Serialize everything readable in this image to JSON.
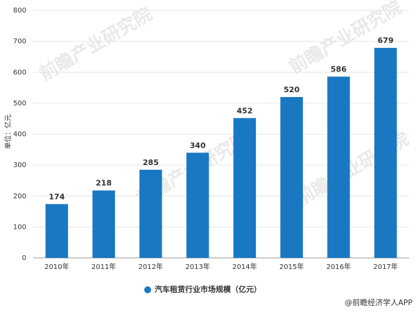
{
  "chart_data": {
    "type": "bar",
    "y_axis_label": "单位：亿元",
    "categories": [
      "2010年",
      "2011年",
      "2012年",
      "2013年",
      "2014年",
      "2015年",
      "2016年",
      "2017年"
    ],
    "series": [
      {
        "name": "汽车租赁行业市场规模（亿元）",
        "color": "#1a78c2",
        "values": [
          174,
          218,
          285,
          340,
          452,
          520,
          586,
          679
        ]
      }
    ],
    "ylim": [
      0,
      800
    ],
    "yticks": [
      0,
      100,
      200,
      300,
      400,
      500,
      600,
      700,
      800
    ],
    "grid": true,
    "watermark": "前瞻产业研究院",
    "footer": "@前瞻经济学人APP"
  }
}
